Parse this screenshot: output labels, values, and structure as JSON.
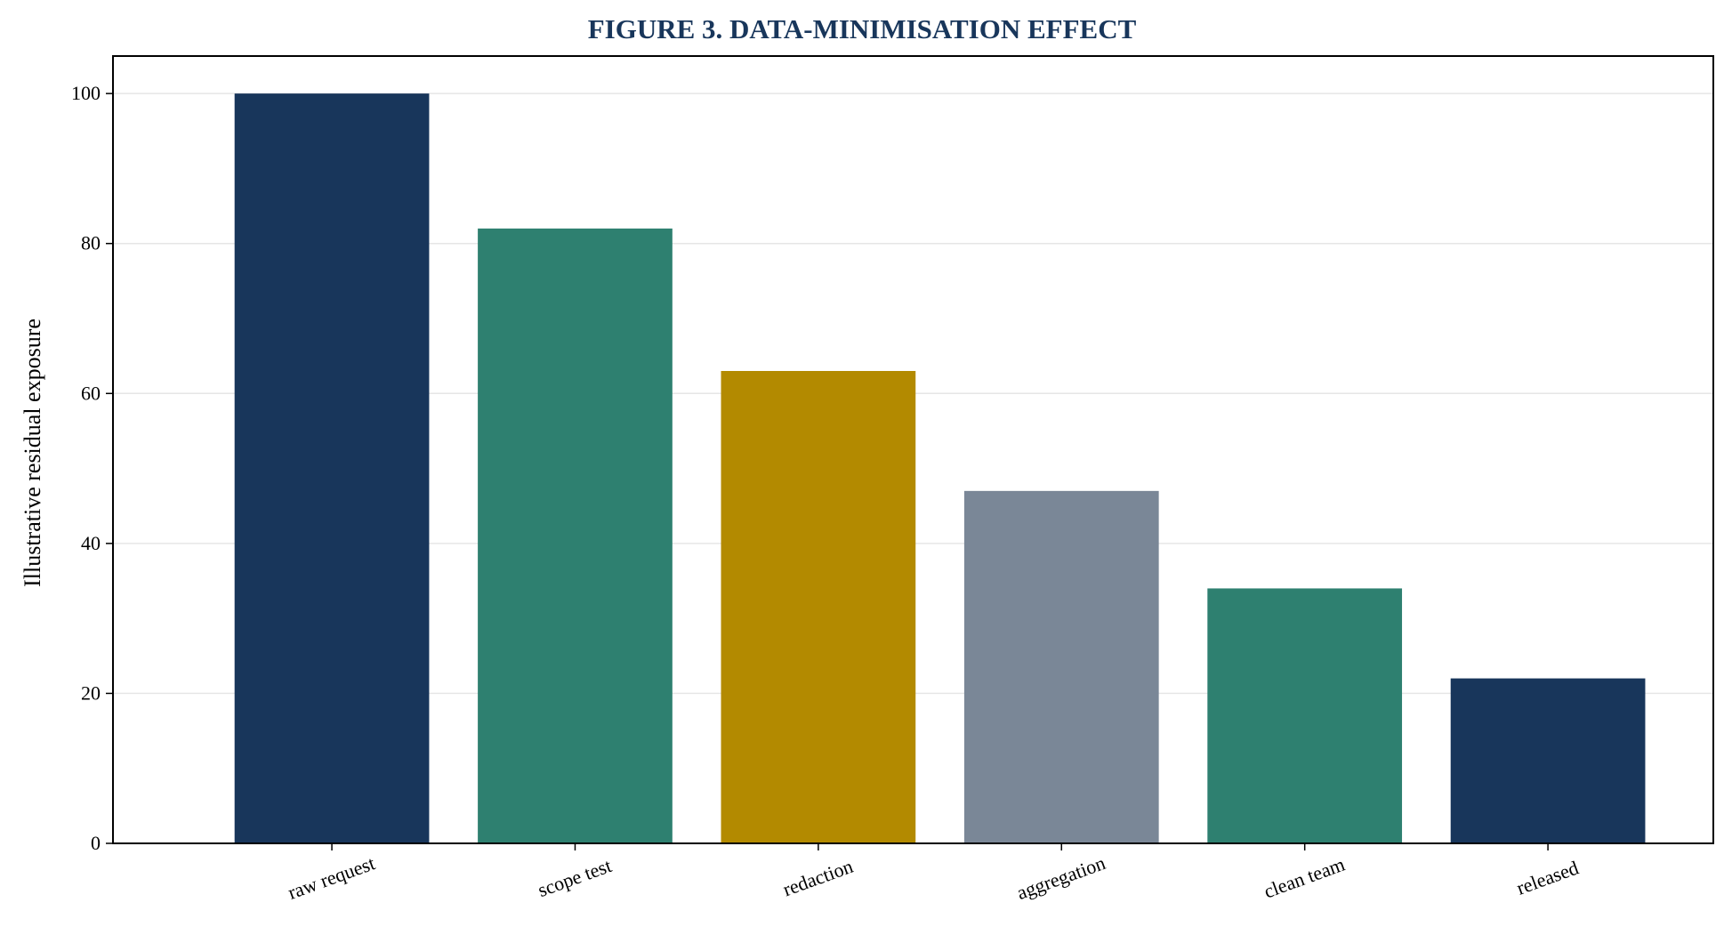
{
  "chart_data": {
    "type": "bar",
    "title": "FIGURE 3. DATA-MINIMISATION EFFECT",
    "xlabel": "",
    "ylabel": "Illustrative residual exposure",
    "categories": [
      "raw request",
      "scope test",
      "redaction",
      "aggregation",
      "clean team",
      "released"
    ],
    "values": [
      100,
      82,
      63,
      47,
      34,
      22
    ],
    "bar_colors": [
      "#18365b",
      "#2e8070",
      "#b38a00",
      "#7a8797",
      "#2e8070",
      "#18365b"
    ],
    "ylim": [
      0,
      105
    ],
    "yticks": [
      0,
      20,
      40,
      60,
      80,
      100
    ],
    "grid": "horizontal",
    "legend": "none",
    "title_color": "#18365b"
  }
}
